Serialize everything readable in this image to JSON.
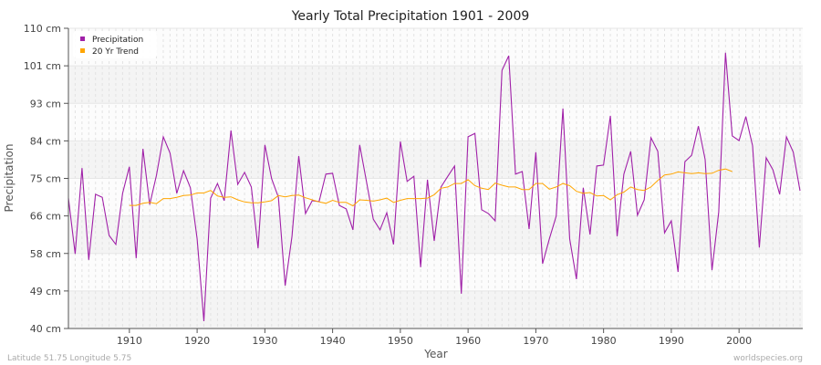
{
  "chart_data": {
    "type": "line",
    "title": "Yearly Total Precipitation 1901 - 2009",
    "xlabel": "Year",
    "ylabel": "Precipitation",
    "xlim": [
      1901,
      2009
    ],
    "ylim": [
      40,
      110
    ],
    "x_ticks": [
      1910,
      1920,
      1930,
      1940,
      1950,
      1960,
      1970,
      1980,
      1990,
      2000
    ],
    "y_ticks": [
      {
        "value": 40,
        "label": "40 cm"
      },
      {
        "value": 48.75,
        "label": "49 cm"
      },
      {
        "value": 57.5,
        "label": "58 cm"
      },
      {
        "value": 66.25,
        "label": "66 cm"
      },
      {
        "value": 75,
        "label": "75 cm"
      },
      {
        "value": 83.75,
        "label": "84 cm"
      },
      {
        "value": 92.5,
        "label": "93 cm"
      },
      {
        "value": 101.25,
        "label": "101 cm"
      },
      {
        "value": 110,
        "label": "110 cm"
      }
    ],
    "grid": true,
    "legend_position": "top-left",
    "series": [
      {
        "name": "Precipitation",
        "color": "#a020a8",
        "x_start": 1901,
        "values": [
          70.4,
          57.4,
          77.4,
          56.0,
          71.3,
          70.6,
          61.7,
          59.6,
          71.5,
          77.7,
          56.4,
          81.9,
          68.9,
          75.7,
          84.7,
          80.9,
          71.5,
          76.8,
          72.8,
          60.9,
          41.7,
          70.4,
          73.8,
          69.8,
          86.2,
          73.6,
          76.4,
          73.0,
          58.7,
          82.8,
          74.9,
          70.6,
          50.0,
          61.5,
          80.2,
          66.8,
          69.8,
          69.6,
          76.0,
          76.2,
          68.7,
          67.9,
          63.0,
          82.8,
          74.3,
          65.5,
          63.0,
          67.0,
          59.6,
          83.6,
          74.3,
          75.5,
          54.3,
          74.7,
          60.4,
          73.0,
          75.5,
          77.9,
          48.1,
          84.7,
          85.5,
          67.7,
          66.8,
          65.1,
          100.2,
          103.6,
          76.0,
          76.6,
          63.2,
          81.1,
          55.1,
          60.9,
          66.2,
          91.3,
          60.9,
          51.5,
          72.8,
          61.9,
          77.9,
          78.1,
          89.6,
          61.5,
          76.0,
          81.3,
          66.4,
          70.0,
          84.5,
          81.3,
          62.3,
          65.1,
          53.2,
          78.9,
          80.4,
          87.2,
          79.4,
          53.6,
          67.2,
          104.3,
          84.9,
          83.8,
          89.4,
          82.6,
          58.9,
          79.8,
          77.0,
          71.3,
          84.7,
          81.1,
          72.1
        ]
      },
      {
        "name": "20 Yr Trend",
        "color": "#ffa500",
        "x_start": 1910,
        "values": [
          68.7,
          68.7,
          69.2,
          69.4,
          69.1,
          70.3,
          70.3,
          70.6,
          71.0,
          71.1,
          71.6,
          71.6,
          72.2,
          70.9,
          70.6,
          70.7,
          70.0,
          69.5,
          69.3,
          69.3,
          69.5,
          69.8,
          71.0,
          70.7,
          71.0,
          71.1,
          70.5,
          70.0,
          69.5,
          69.2,
          69.9,
          69.4,
          69.4,
          68.6,
          70.0,
          69.9,
          69.7,
          70.0,
          70.4,
          69.4,
          69.9,
          70.3,
          70.3,
          70.3,
          70.4,
          71.2,
          72.7,
          73.0,
          73.8,
          73.8,
          74.7,
          73.3,
          72.7,
          72.4,
          73.9,
          73.4,
          73.0,
          73.0,
          72.4,
          72.4,
          73.8,
          73.8,
          72.5,
          73.0,
          73.8,
          73.3,
          72.0,
          71.5,
          71.7,
          70.9,
          71.0,
          70.0,
          71.2,
          71.8,
          73.0,
          72.4,
          72.2,
          73.0,
          74.5,
          75.8,
          76.0,
          76.5,
          76.3,
          76.1,
          76.3,
          76.1,
          76.2,
          76.9,
          77.2,
          76.6
        ]
      }
    ]
  },
  "footer": {
    "location": "Latitude 51.75 Longitude 5.75",
    "source": "worldspecies.org"
  }
}
